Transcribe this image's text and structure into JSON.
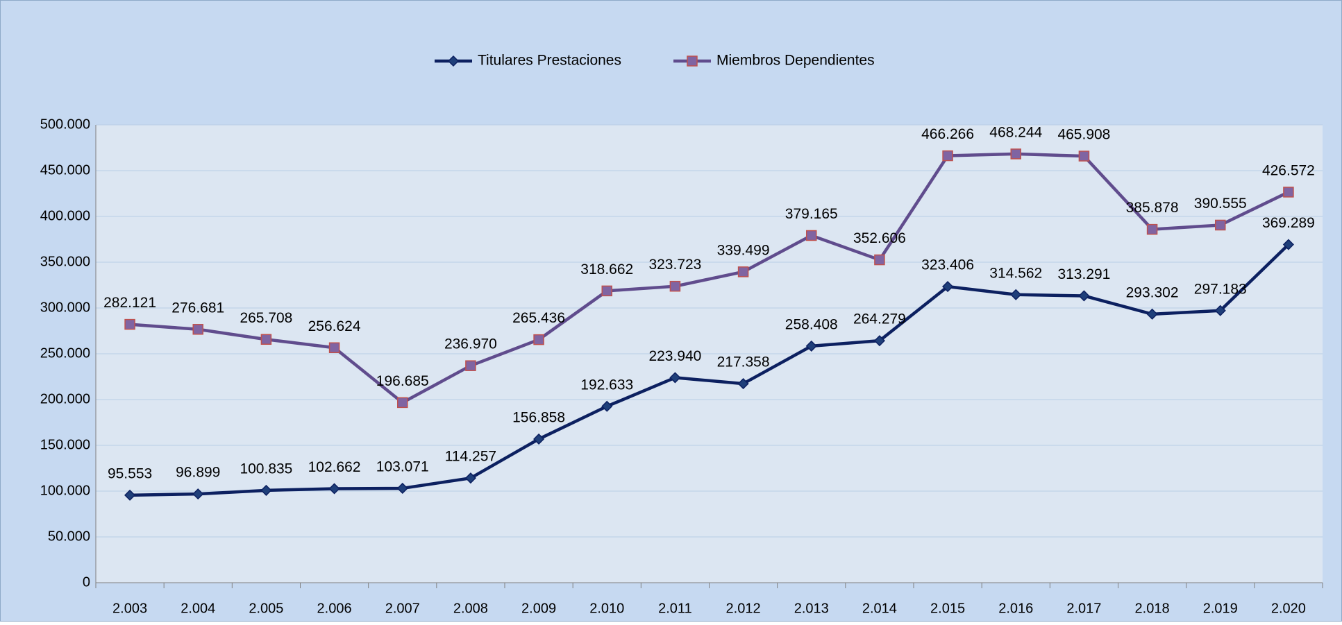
{
  "chart_data": {
    "type": "line",
    "categories": [
      "2.003",
      "2.004",
      "2.005",
      "2.006",
      "2.007",
      "2.008",
      "2.009",
      "2.010",
      "2.011",
      "2.012",
      "2.013",
      "2.014",
      "2.015",
      "2.016",
      "2.017",
      "2.018",
      "2.019",
      "2.020"
    ],
    "series": [
      {
        "name": "Titulares Prestaciones",
        "color": "#0c2060",
        "marker": "diamond",
        "marker_color": "#1f3f7a",
        "values": [
          95553,
          96899,
          100835,
          102662,
          103071,
          114257,
          156858,
          192633,
          223940,
          217358,
          258408,
          264279,
          323406,
          314562,
          313291,
          293302,
          297183,
          369289
        ],
        "value_labels": [
          "95.553",
          "96.899",
          "100.835",
          "102.662",
          "103.071",
          "114.257",
          "156.858",
          "192.633",
          "223.940",
          "217.358",
          "258.408",
          "264.279",
          "323.406",
          "314.562",
          "313.291",
          "293.302",
          "297.183",
          "369.289"
        ]
      },
      {
        "name": "Miembros Dependientes",
        "color": "#604c8d",
        "marker": "square",
        "marker_color": "#8064a2",
        "marker_edge": "#c0504d",
        "values": [
          282121,
          276681,
          265708,
          256624,
          196685,
          236970,
          265436,
          318662,
          323723,
          339499,
          379165,
          352606,
          466266,
          468244,
          465908,
          385878,
          390555,
          426572
        ],
        "value_labels": [
          "282.121",
          "276.681",
          "265.708",
          "256.624",
          "196.685",
          "236.970",
          "265.436",
          "318.662",
          "323.723",
          "339.499",
          "379.165",
          "352.606",
          "466.266",
          "468.244",
          "465.908",
          "385.878",
          "390.555",
          "426.572"
        ]
      }
    ],
    "ylim": [
      0,
      500000
    ],
    "yticks": [
      {
        "value": 0,
        "label": "0"
      },
      {
        "value": 50000,
        "label": "50.000"
      },
      {
        "value": 100000,
        "label": "100.000"
      },
      {
        "value": 150000,
        "label": "150.000"
      },
      {
        "value": 200000,
        "label": "200.000"
      },
      {
        "value": 250000,
        "label": "250.000"
      },
      {
        "value": 300000,
        "label": "300.000"
      },
      {
        "value": 350000,
        "label": "350.000"
      },
      {
        "value": 400000,
        "label": "400.000"
      },
      {
        "value": 450000,
        "label": "450.000"
      },
      {
        "value": 500000,
        "label": "500.000"
      }
    ],
    "grid": true,
    "legend": "top"
  }
}
